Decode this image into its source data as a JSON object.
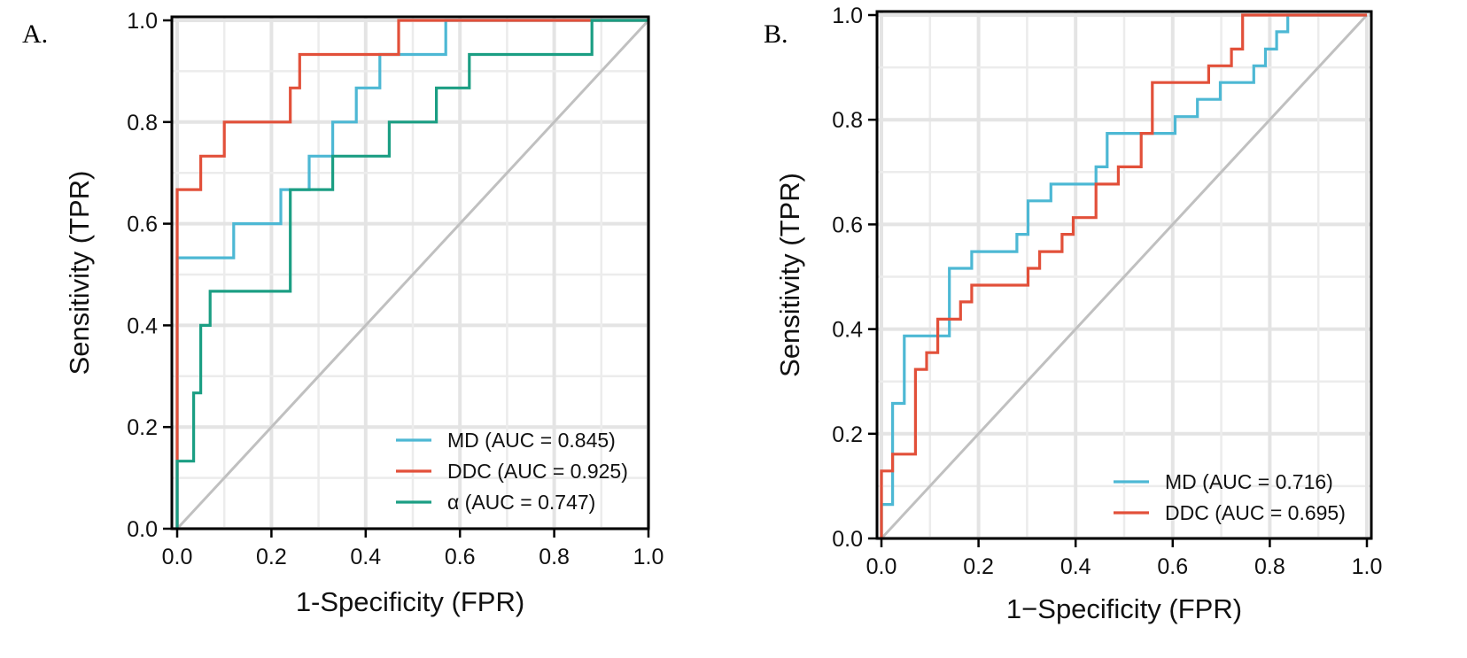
{
  "chart_data": [
    {
      "type": "line",
      "panel_label": "A.",
      "xlabel": "1-Specificity (FPR)",
      "ylabel": "Sensitivity (TPR)",
      "xlim": [
        0,
        1
      ],
      "ylim": [
        0,
        1
      ],
      "x_ticks": [
        "0.0",
        "0.2",
        "0.4",
        "0.6",
        "0.8",
        "1.0"
      ],
      "y_ticks": [
        "0.0",
        "0.2",
        "0.4",
        "0.6",
        "0.8",
        "1.0"
      ],
      "grid": true,
      "legend_position": "bottom-right",
      "diagonal_color": "#c0c0c0",
      "series": [
        {
          "name": "MD (AUC = 0.845)",
          "color": "#4db8d4",
          "x": [
            0,
            0,
            0.12,
            0.12,
            0.22,
            0.22,
            0.28,
            0.28,
            0.33,
            0.33,
            0.38,
            0.38,
            0.43,
            0.43,
            0.57,
            0.57,
            0.88,
            1.0
          ],
          "y": [
            0,
            0.533,
            0.533,
            0.6,
            0.6,
            0.667,
            0.667,
            0.733,
            0.733,
            0.8,
            0.8,
            0.867,
            0.867,
            0.933,
            0.933,
            1.0,
            1.0,
            1.0
          ]
        },
        {
          "name": "DDC (AUC = 0.925)",
          "color": "#e2503a",
          "x": [
            0,
            0,
            0.05,
            0.05,
            0.1,
            0.1,
            0.24,
            0.24,
            0.26,
            0.26,
            0.47,
            0.47,
            0.88,
            1.0
          ],
          "y": [
            0,
            0.667,
            0.667,
            0.733,
            0.733,
            0.8,
            0.8,
            0.867,
            0.867,
            0.933,
            0.933,
            1.0,
            1.0,
            1.0
          ]
        },
        {
          "name": "α (AUC = 0.747)",
          "color": "#1b9e83",
          "x": [
            0,
            0,
            0.035,
            0.035,
            0.05,
            0.05,
            0.07,
            0.07,
            0.24,
            0.24,
            0.33,
            0.33,
            0.45,
            0.45,
            0.55,
            0.55,
            0.62,
            0.62,
            0.88,
            0.88,
            1.0
          ],
          "y": [
            0,
            0.133,
            0.133,
            0.267,
            0.267,
            0.4,
            0.4,
            0.467,
            0.467,
            0.667,
            0.667,
            0.733,
            0.733,
            0.8,
            0.8,
            0.867,
            0.867,
            0.933,
            0.933,
            1.0,
            1.0
          ]
        }
      ]
    },
    {
      "type": "line",
      "panel_label": "B.",
      "xlabel": "1−Specificity (FPR)",
      "ylabel": "Sensitivity (TPR)",
      "xlim": [
        0,
        1
      ],
      "ylim": [
        0,
        1
      ],
      "x_ticks": [
        "0.0",
        "0.2",
        "0.4",
        "0.6",
        "0.8",
        "1.0"
      ],
      "y_ticks": [
        "0.0",
        "0.2",
        "0.4",
        "0.6",
        "0.8",
        "1.0"
      ],
      "grid": true,
      "legend_position": "bottom-right",
      "diagonal_color": "#c0c0c0",
      "series": [
        {
          "name": "MD (AUC = 0.716)",
          "color": "#4db8d4",
          "x": [
            0,
            0,
            0.023,
            0.023,
            0.047,
            0.047,
            0.14,
            0.14,
            0.186,
            0.186,
            0.279,
            0.279,
            0.302,
            0.302,
            0.349,
            0.349,
            0.442,
            0.442,
            0.465,
            0.465,
            0.558,
            0.558,
            0.605,
            0.605,
            0.651,
            0.651,
            0.698,
            0.698,
            0.767,
            0.767,
            0.791,
            0.791,
            0.814,
            0.814,
            0.837,
            0.837,
            1.0
          ],
          "y": [
            0,
            0.065,
            0.065,
            0.258,
            0.258,
            0.387,
            0.387,
            0.516,
            0.516,
            0.548,
            0.548,
            0.581,
            0.581,
            0.645,
            0.645,
            0.677,
            0.677,
            0.71,
            0.71,
            0.774,
            0.774,
            0.774,
            0.774,
            0.806,
            0.806,
            0.839,
            0.839,
            0.871,
            0.871,
            0.903,
            0.903,
            0.935,
            0.935,
            0.968,
            0.968,
            1.0,
            1.0
          ]
        },
        {
          "name": "DDC (AUC = 0.695)",
          "color": "#e2503a",
          "x": [
            0,
            0,
            0.023,
            0.023,
            0.07,
            0.07,
            0.093,
            0.093,
            0.116,
            0.116,
            0.163,
            0.163,
            0.186,
            0.186,
            0.302,
            0.302,
            0.326,
            0.326,
            0.372,
            0.372,
            0.395,
            0.395,
            0.442,
            0.442,
            0.488,
            0.488,
            0.535,
            0.535,
            0.558,
            0.558,
            0.674,
            0.674,
            0.721,
            0.721,
            0.744,
            0.744,
            1.0
          ],
          "y": [
            0,
            0.129,
            0.129,
            0.161,
            0.161,
            0.323,
            0.323,
            0.355,
            0.355,
            0.419,
            0.419,
            0.452,
            0.452,
            0.484,
            0.484,
            0.516,
            0.516,
            0.548,
            0.548,
            0.581,
            0.581,
            0.613,
            0.613,
            0.677,
            0.677,
            0.71,
            0.71,
            0.774,
            0.774,
            0.871,
            0.871,
            0.903,
            0.903,
            0.935,
            0.935,
            1.0,
            1.0
          ]
        }
      ]
    }
  ]
}
